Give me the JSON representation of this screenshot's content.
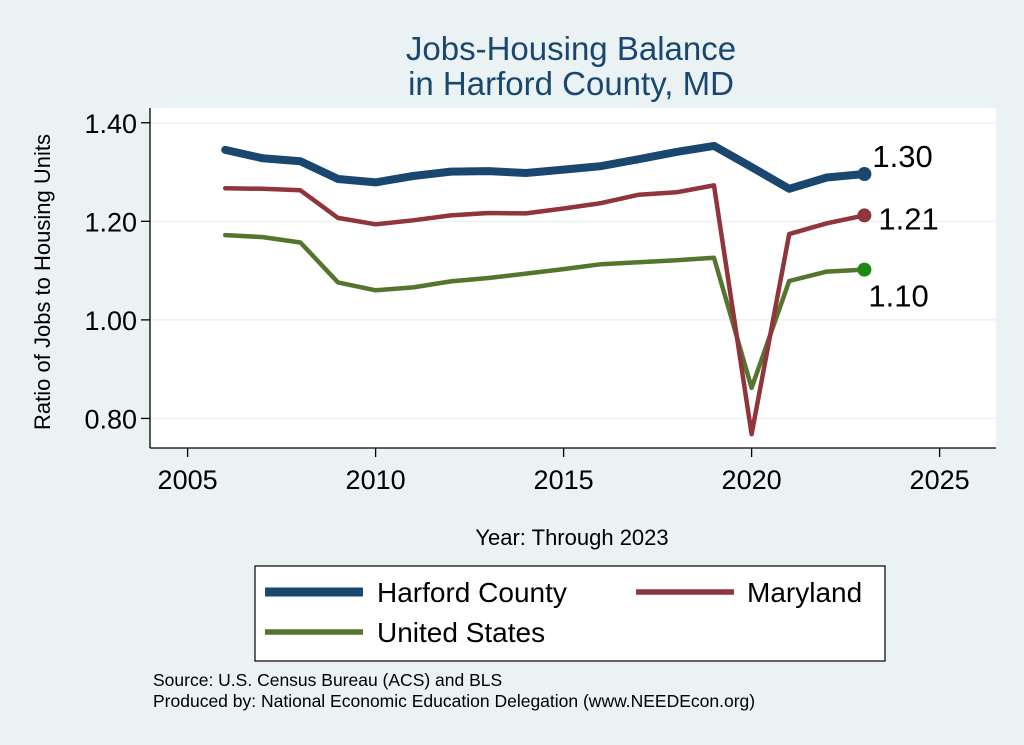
{
  "chart_data": {
    "type": "line",
    "title_lines": [
      "Jobs-Housing Balance",
      "in Harford County, MD"
    ],
    "xlabel": "Year: Through 2023",
    "ylabel": "Ratio of Jobs to Housing Units",
    "xlim": [
      2004,
      2026.5
    ],
    "ylim": [
      0.74,
      1.43
    ],
    "x_ticks": [
      2005,
      2010,
      2015,
      2020,
      2025
    ],
    "y_ticks": [
      0.8,
      1.0,
      1.2,
      1.4
    ],
    "y_tick_labels": [
      "0.80",
      "1.00",
      "1.20",
      "1.40"
    ],
    "grid": "horizontal",
    "legend_position": "bottom",
    "x": [
      2006,
      2007,
      2008,
      2009,
      2010,
      2011,
      2012,
      2013,
      2014,
      2015,
      2016,
      2017,
      2018,
      2019,
      2020,
      2021,
      2022,
      2023
    ],
    "series": [
      {
        "name": "Harford County",
        "color": "#1a476f",
        "width": 8,
        "values": [
          1.345,
          1.328,
          1.322,
          1.286,
          1.279,
          1.292,
          1.301,
          1.302,
          1.298,
          1.305,
          1.312,
          1.326,
          1.341,
          1.353,
          1.31,
          1.266,
          1.289,
          1.296
        ],
        "end_label": "1.30"
      },
      {
        "name": "Maryland",
        "color": "#90353b",
        "width": 4.5,
        "values": [
          1.267,
          1.266,
          1.263,
          1.207,
          1.194,
          1.202,
          1.212,
          1.217,
          1.216,
          1.226,
          1.237,
          1.254,
          1.259,
          1.273,
          0.768,
          1.174,
          1.196,
          1.212
        ],
        "end_label": "1.21"
      },
      {
        "name": "United States",
        "color": "#55752f",
        "width": 4.5,
        "values": [
          1.172,
          1.168,
          1.157,
          1.076,
          1.06,
          1.066,
          1.078,
          1.085,
          1.094,
          1.103,
          1.113,
          1.117,
          1.121,
          1.126,
          0.862,
          1.079,
          1.098,
          1.102
        ],
        "end_label": "1.10"
      }
    ]
  },
  "footer": {
    "source": "Source: U.S. Census Bureau (ACS) and BLS",
    "producer": "Produced by: National Economic Education Delegation (www.NEEDEcon.org)"
  }
}
